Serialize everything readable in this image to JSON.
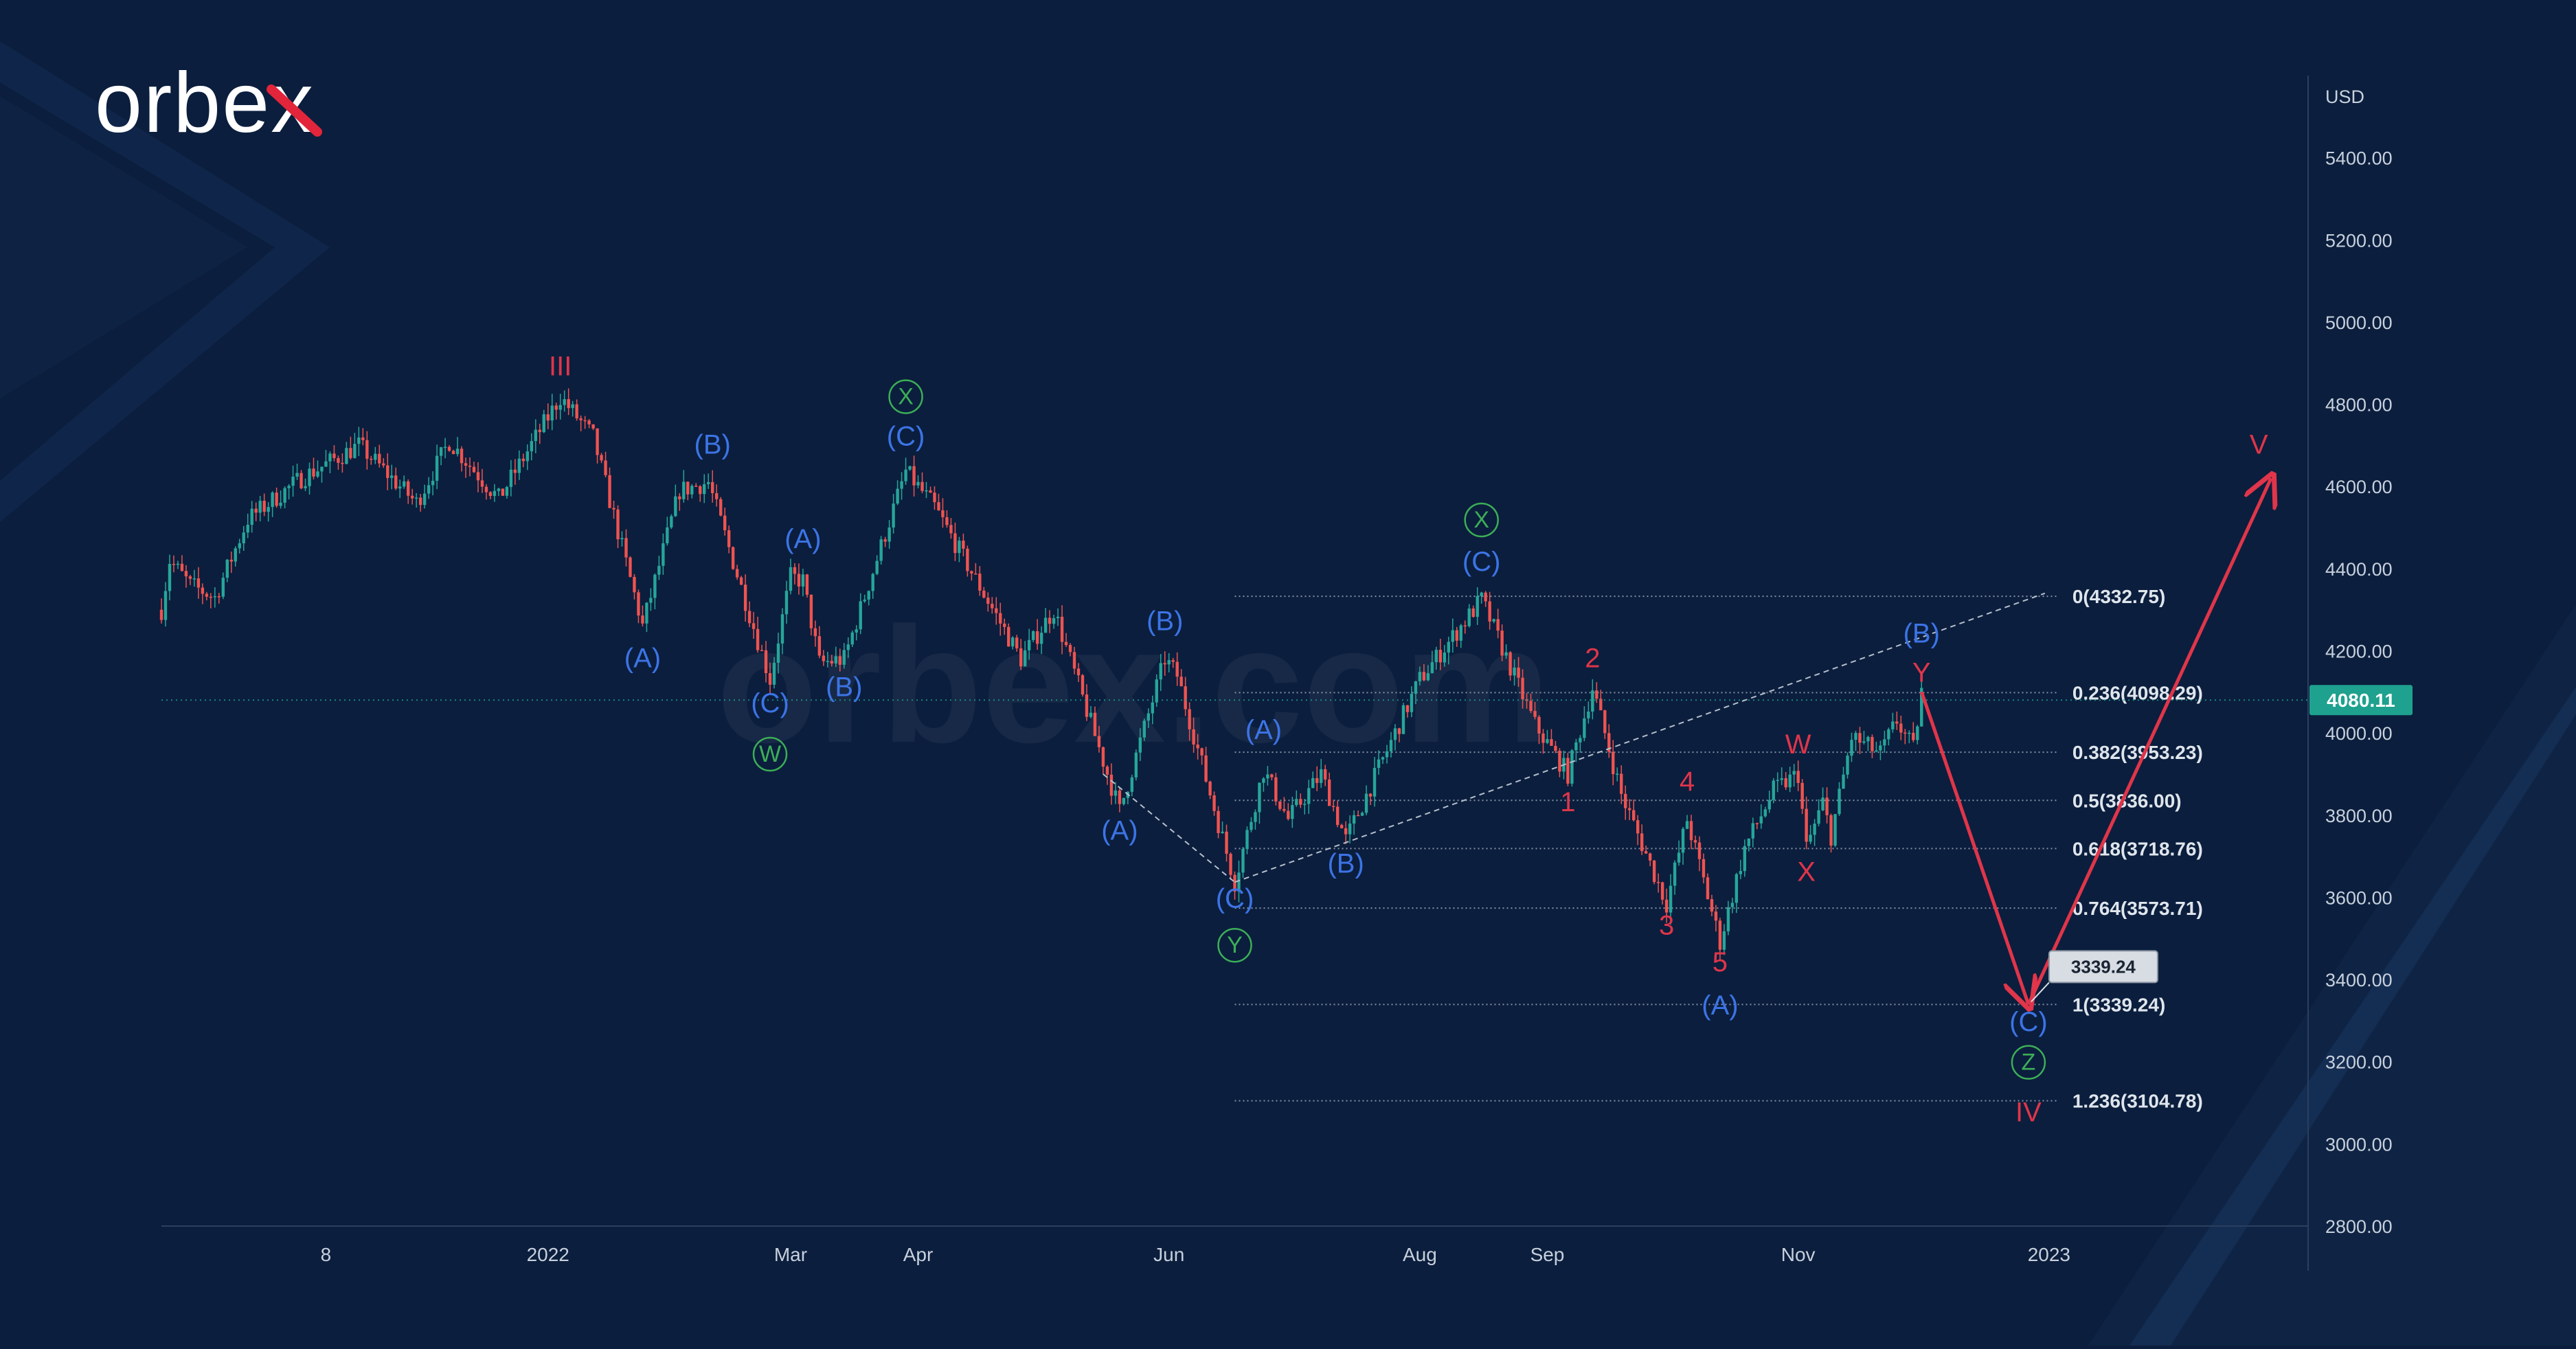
{
  "brand": {
    "logo_text": "orbex",
    "watermark_text": "orbex.com"
  },
  "colors": {
    "background": "#0b1e3d",
    "background_shape": "#12284a",
    "candle_up": "#26a69a",
    "candle_down": "#ef5350",
    "wave_red": "#e0354a",
    "wave_blue": "#3c74e6",
    "wave_green": "#3cae57",
    "fib_line": "#9aa7b8",
    "text": "#c7d0dc",
    "price_badge": "#1ea18f",
    "projection_badge": "#d7dde3"
  },
  "chart_data": {
    "type": "candlestick",
    "instrument_unit": "USD",
    "current_price": "4080.11",
    "y_axis": {
      "min": 2800,
      "max": 5600,
      "ticks": [
        "5400.00",
        "5200.00",
        "5000.00",
        "4800.00",
        "4600.00",
        "4400.00",
        "4200.00",
        "4000.00",
        "3800.00",
        "3600.00",
        "3400.00",
        "3200.00",
        "3000.00",
        "2800.00"
      ]
    },
    "x_axis": {
      "range": [
        "2021-09-29",
        "2023-03-05"
      ],
      "ticks": [
        {
          "label": "8",
          "date": "2021-11-08"
        },
        {
          "label": "2022",
          "date": "2022-01-01"
        },
        {
          "label": "Mar",
          "date": "2022-03-01"
        },
        {
          "label": "Apr",
          "date": "2022-04-01"
        },
        {
          "label": "Jun",
          "date": "2022-06-01"
        },
        {
          "label": "Aug",
          "date": "2022-08-01"
        },
        {
          "label": "Sep",
          "date": "2022-09-01"
        },
        {
          "label": "Nov",
          "date": "2022-11-01"
        },
        {
          "label": "2023",
          "date": "2023-01-01"
        }
      ]
    },
    "price_path": [
      [
        "2021-09-29",
        4300
      ],
      [
        "2021-10-01",
        4420
      ],
      [
        "2021-10-06",
        4360
      ],
      [
        "2021-10-12",
        4330
      ],
      [
        "2021-10-20",
        4520
      ],
      [
        "2021-11-02",
        4620
      ],
      [
        "2021-11-16",
        4700
      ],
      [
        "2021-11-30",
        4560
      ],
      [
        "2021-12-08",
        4710
      ],
      [
        "2021-12-20",
        4570
      ],
      [
        "2022-01-04",
        4818
      ],
      [
        "2022-01-12",
        4720
      ],
      [
        "2022-01-24",
        4260
      ],
      [
        "2022-02-02",
        4590
      ],
      [
        "2022-02-09",
        4610
      ],
      [
        "2022-02-24",
        4130
      ],
      [
        "2022-03-01",
        4380
      ],
      [
        "2022-03-04",
        4370
      ],
      [
        "2022-03-08",
        4170
      ],
      [
        "2022-03-14",
        4180
      ],
      [
        "2022-03-29",
        4637
      ],
      [
        "2022-04-05",
        4550
      ],
      [
        "2022-04-26",
        4180
      ],
      [
        "2022-05-04",
        4300
      ],
      [
        "2022-05-20",
        3810
      ],
      [
        "2022-05-31",
        4180
      ],
      [
        "2022-06-03",
        4140
      ],
      [
        "2022-06-17",
        3637
      ],
      [
        "2022-06-24",
        3910
      ],
      [
        "2022-06-30",
        3790
      ],
      [
        "2022-07-08",
        3900
      ],
      [
        "2022-07-14",
        3740
      ],
      [
        "2022-08-01",
        4130
      ],
      [
        "2022-08-16",
        4325
      ],
      [
        "2022-08-29",
        4020
      ],
      [
        "2022-09-06",
        3900
      ],
      [
        "2022-09-12",
        4110
      ],
      [
        "2022-09-19",
        3850
      ],
      [
        "2022-09-30",
        3585
      ],
      [
        "2022-10-05",
        3790
      ],
      [
        "2022-10-13",
        3491
      ],
      [
        "2022-10-19",
        3720
      ],
      [
        "2022-10-26",
        3860
      ],
      [
        "2022-11-01",
        3900
      ],
      [
        "2022-11-03",
        3720
      ],
      [
        "2022-11-07",
        3830
      ],
      [
        "2022-11-09",
        3750
      ],
      [
        "2022-11-14",
        3990
      ],
      [
        "2022-11-21",
        3950
      ],
      [
        "2022-11-25",
        4030
      ],
      [
        "2022-11-29",
        3960
      ],
      [
        "2022-12-01",
        4100
      ]
    ],
    "fibonacci_levels": [
      {
        "label": "0(4332.75)",
        "value": 4332.75
      },
      {
        "label": "0.236(4098.29)",
        "value": 4098.29
      },
      {
        "label": "0.382(3953.23)",
        "value": 3953.23
      },
      {
        "label": "0.5(3836.00)",
        "value": 3836.0
      },
      {
        "label": "0.618(3718.76)",
        "value": 3718.76
      },
      {
        "label": "0.764(3573.71)",
        "value": 3573.71
      },
      {
        "label": "1(3339.24)",
        "value": 3339.24
      },
      {
        "label": "1.236(3104.78)",
        "value": 3104.78
      }
    ],
    "fib_range": {
      "start_date": "2022-06-17",
      "end_date": "2022-12-31"
    },
    "projection_price": "3339.24",
    "projection_path": [
      [
        "2022-12-01",
        4100
      ],
      [
        "2022-12-27",
        3339
      ],
      [
        "2023-02-24",
        4620
      ]
    ],
    "dashed_channel": [
      {
        "from": [
          "2022-05-16",
          3900
        ],
        "to": [
          "2022-06-17",
          3637
        ]
      },
      {
        "from": [
          "2022-06-17",
          3637
        ],
        "to": [
          "2022-12-31",
          4340
        ]
      }
    ],
    "wave_labels": [
      {
        "text": "III",
        "date": "2022-01-04",
        "price": 4870,
        "color": "red"
      },
      {
        "text": "(A)",
        "date": "2022-01-24",
        "price": 4160,
        "color": "blue"
      },
      {
        "text": "(B)",
        "date": "2022-02-10",
        "price": 4680,
        "color": "blue"
      },
      {
        "text": "(C)",
        "date": "2022-02-24",
        "price": 4050,
        "color": "blue"
      },
      {
        "text": "W",
        "date": "2022-02-24",
        "price": 3930,
        "color": "green",
        "circled": true
      },
      {
        "text": "(A)",
        "date": "2022-03-04",
        "price": 4450,
        "color": "blue"
      },
      {
        "text": "(B)",
        "date": "2022-03-14",
        "price": 4090,
        "color": "blue"
      },
      {
        "text": "(C)",
        "date": "2022-03-29",
        "price": 4700,
        "color": "blue"
      },
      {
        "text": "X",
        "date": "2022-03-29",
        "price": 4800,
        "color": "green",
        "circled": true
      },
      {
        "text": "(A)",
        "date": "2022-05-20",
        "price": 3740,
        "color": "blue"
      },
      {
        "text": "(B)",
        "date": "2022-05-31",
        "price": 4250,
        "color": "blue"
      },
      {
        "text": "(C)",
        "date": "2022-06-17",
        "price": 3575,
        "color": "blue"
      },
      {
        "text": "Y",
        "date": "2022-06-17",
        "price": 3465,
        "color": "green",
        "circled": true
      },
      {
        "text": "(A)",
        "date": "2022-06-24",
        "price": 3985,
        "color": "blue"
      },
      {
        "text": "(B)",
        "date": "2022-07-14",
        "price": 3660,
        "color": "blue"
      },
      {
        "text": "(C)",
        "date": "2022-08-16",
        "price": 4395,
        "color": "blue"
      },
      {
        "text": "X",
        "date": "2022-08-16",
        "price": 4500,
        "color": "green",
        "circled": true
      },
      {
        "text": "1",
        "date": "2022-09-06",
        "price": 3810,
        "color": "red"
      },
      {
        "text": "2",
        "date": "2022-09-12",
        "price": 4160,
        "color": "red"
      },
      {
        "text": "3",
        "date": "2022-09-30",
        "price": 3510,
        "color": "red"
      },
      {
        "text": "4",
        "date": "2022-10-05",
        "price": 3860,
        "color": "red"
      },
      {
        "text": "5",
        "date": "2022-10-13",
        "price": 3420,
        "color": "red"
      },
      {
        "text": "(A)",
        "date": "2022-10-13",
        "price": 3315,
        "color": "blue"
      },
      {
        "text": "W",
        "date": "2022-11-01",
        "price": 3950,
        "color": "red"
      },
      {
        "text": "X",
        "date": "2022-11-03",
        "price": 3640,
        "color": "red"
      },
      {
        "text": "(B)",
        "date": "2022-12-01",
        "price": 4220,
        "color": "blue"
      },
      {
        "text": "Y",
        "date": "2022-12-01",
        "price": 4125,
        "color": "red"
      },
      {
        "text": "(C)",
        "date": "2022-12-27",
        "price": 3275,
        "color": "blue"
      },
      {
        "text": "Z",
        "date": "2022-12-27",
        "price": 3180,
        "color": "green",
        "circled": true
      },
      {
        "text": "IV",
        "date": "2022-12-27",
        "price": 3055,
        "color": "red"
      },
      {
        "text": "V",
        "date": "2023-02-21",
        "price": 4680,
        "color": "red"
      }
    ]
  }
}
